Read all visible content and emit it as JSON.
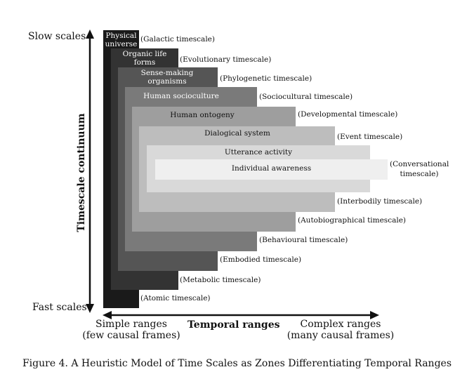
{
  "axis": {
    "vertical_title": "Timescale continuum",
    "top": "Slow scales",
    "bottom": "Fast scales",
    "horizontal_title": "Temporal ranges",
    "left_line1": "Simple ranges",
    "left_line2": "(few causal frames)",
    "right_line1": "Complex ranges",
    "right_line2": "(many causal frames)"
  },
  "zones": [
    {
      "title": "Physical universe",
      "top_scale": "(Galactic timescale)",
      "bottom_scale": "(Atomic timescale)",
      "color": "#1a1a1a"
    },
    {
      "title": "Organic life forms",
      "top_scale": "(Evolutionary timescale)",
      "bottom_scale": "(Metabolic timescale)",
      "color": "#333333"
    },
    {
      "title": "Sense-making organisms",
      "top_scale": "(Phylogenetic timescale)",
      "bottom_scale": "(Embodied timescale)",
      "color": "#555555"
    },
    {
      "title": "Human socioculture",
      "top_scale": "(Sociocultural timescale)",
      "bottom_scale": "(Behavioural timescale)",
      "color": "#7a7a7a"
    },
    {
      "title": "Human ontogeny",
      "top_scale": "(Developmental timescale)",
      "bottom_scale": "(Autobiographical timescale)",
      "color": "#9e9e9e"
    },
    {
      "title": "Dialogical system",
      "top_scale": "(Event timescale)",
      "bottom_scale": "(Interbodily timescale)",
      "color": "#bdbdbd"
    },
    {
      "title": "Utterance activity",
      "top_scale": "",
      "bottom_scale": "",
      "color": "#d9d9d9"
    },
    {
      "title": "Individual awareness",
      "top_scale": "",
      "bottom_scale": "",
      "color": "#efefef"
    }
  ],
  "conversational": {
    "line1": "(Conversational",
    "line2": "timescale)"
  },
  "caption": "Figure 4. A Heuristic Model of Time Scales as Zones Differentiating Temporal Ranges"
}
